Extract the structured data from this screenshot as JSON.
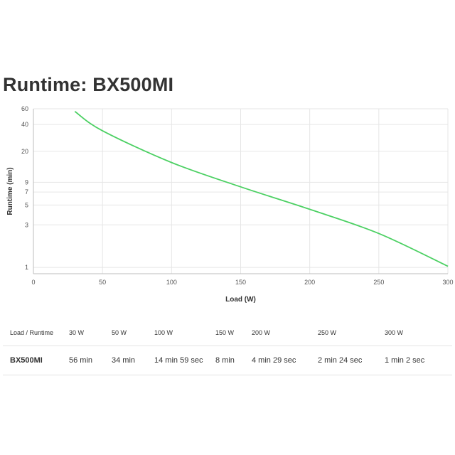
{
  "page": {
    "title": "Runtime: BX500MI"
  },
  "colors": {
    "line": "#4cd063",
    "grid": "#e6e6e6",
    "axis": "#bdbdbd"
  },
  "chart_data": {
    "type": "line",
    "title": "",
    "xlabel": "Load (W)",
    "ylabel": "Runtime (min)",
    "xlim": [
      0,
      300
    ],
    "ylim": [
      0.85,
      60
    ],
    "y_scale": "log",
    "grid": true,
    "legend": "none",
    "x_ticks": [
      0,
      50,
      100,
      150,
      200,
      250,
      300
    ],
    "y_ticks": [
      1,
      3,
      5,
      7,
      9,
      20,
      40,
      60
    ],
    "series": [
      {
        "x": [
          30,
          50,
          100,
          150,
          200,
          250,
          300
        ],
        "y": [
          56,
          34,
          14.98,
          8,
          4.48,
          2.4,
          1.03
        ]
      }
    ]
  },
  "table": {
    "corner_label": "Load / Runtime",
    "headers": [
      "30 W",
      "50 W",
      "100 W",
      "150 W",
      "200 W",
      "250 W",
      "300 W"
    ],
    "rows": [
      {
        "model": "BX500MI",
        "values": [
          "56 min",
          "34 min",
          "14 min 59 sec",
          "8 min",
          "4 min 29 sec",
          "2 min 24 sec",
          "1 min 2 sec"
        ]
      }
    ]
  }
}
